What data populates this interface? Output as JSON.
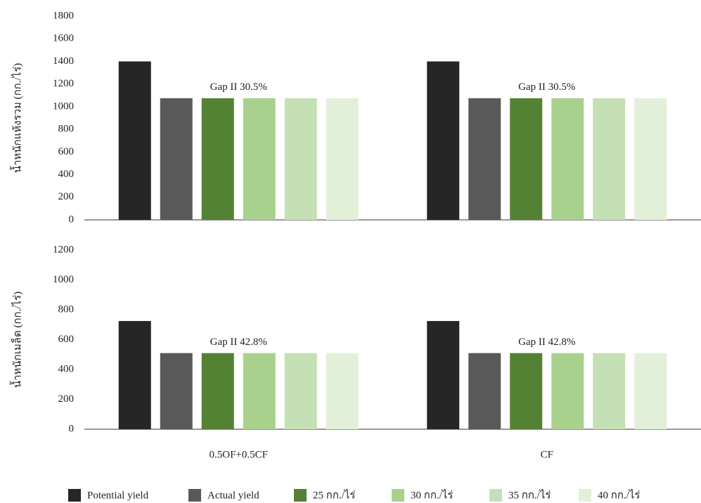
{
  "chart_data": [
    {
      "type": "bar",
      "y_label": "น้ำหนักแห้งรวม (กก./ไร่)",
      "ylim": [
        0,
        1800
      ],
      "yticks": [
        0,
        200,
        400,
        600,
        800,
        1000,
        1200,
        1400,
        1600,
        1800
      ],
      "annotations": [
        "Gap II 30.5%",
        "Gap II 30.5%"
      ],
      "series": [
        {
          "name": "Potential yield",
          "color": "#262626",
          "values": [
            1400,
            1400
          ]
        },
        {
          "name": "Actual yield",
          "color": "#595959",
          "values": [
            1075,
            1075
          ]
        },
        {
          "name": "25 กก./ไร่",
          "color": "#548235",
          "values": [
            1075,
            1075
          ]
        },
        {
          "name": "30 กก./ไร่",
          "color": "#a9d18e",
          "values": [
            1075,
            1075
          ]
        },
        {
          "name": "35 กก./ไร่",
          "color": "#c5e0b4",
          "values": [
            1075,
            1075
          ]
        },
        {
          "name": "40 กก./ไร่",
          "color": "#e2f0d9",
          "values": [
            1075,
            1075
          ]
        }
      ]
    },
    {
      "type": "bar",
      "y_label": "น้ำหนักเมล็ด (กก./ไร่)",
      "categories": [
        "0.5OF+0.5CF",
        "CF"
      ],
      "ylim": [
        0,
        1200
      ],
      "yticks": [
        0,
        200,
        400,
        600,
        800,
        1000,
        1200
      ],
      "annotations": [
        "Gap II 42.8%",
        "Gap II 42.8%"
      ],
      "series": [
        {
          "color": "#262626",
          "values": [
            725,
            725
          ]
        },
        {
          "color": "#595959",
          "values": [
            510,
            510
          ]
        },
        {
          "color": "#548235",
          "values": [
            510,
            510
          ]
        },
        {
          "color": "#a9d18e",
          "values": [
            510,
            510
          ]
        },
        {
          "color": "#c5e0b4",
          "values": [
            510,
            510
          ]
        },
        {
          "color": "#e2f0d9",
          "values": [
            510,
            510
          ]
        }
      ]
    }
  ]
}
